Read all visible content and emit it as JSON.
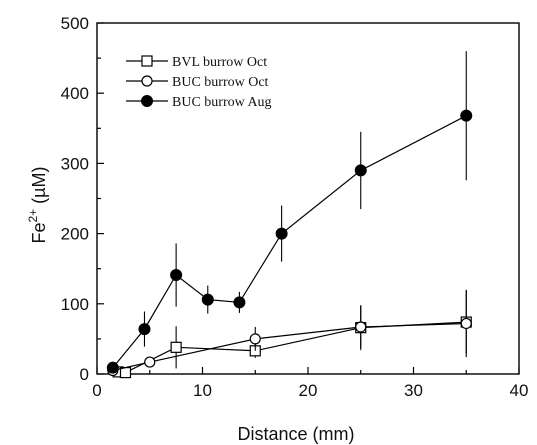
{
  "chart_data": {
    "type": "scatter",
    "xlabel": "Distance (mm)",
    "ylabel": {
      "base": "Fe",
      "sup": "2+",
      "rest": " (µM)"
    },
    "xlim": [
      0,
      40
    ],
    "ylim": [
      0,
      500
    ],
    "xticks": [
      0,
      10,
      20,
      30,
      40
    ],
    "yticks": [
      0,
      100,
      200,
      300,
      400,
      500
    ],
    "legend_position": "top-left",
    "series": [
      {
        "name": "BVL burrow Oct",
        "marker": "open-square",
        "points": [
          {
            "x": 2,
            "y": 3,
            "err": 3
          },
          {
            "x": 2.7,
            "y": 2,
            "err": 3
          },
          {
            "x": 7.5,
            "y": 38,
            "err": 30
          },
          {
            "x": 15,
            "y": 33,
            "err": 10
          },
          {
            "x": 25,
            "y": 66,
            "err": 32
          },
          {
            "x": 35,
            "y": 74,
            "err": 45
          }
        ]
      },
      {
        "name": "BUC burrow Oct",
        "marker": "open-circle",
        "points": [
          {
            "x": 1.5,
            "y": 5,
            "err": 3
          },
          {
            "x": 5,
            "y": 17,
            "err": 7
          },
          {
            "x": 15,
            "y": 50,
            "err": 17
          },
          {
            "x": 25,
            "y": 67,
            "err": 30
          },
          {
            "x": 35,
            "y": 72,
            "err": 48
          }
        ]
      },
      {
        "name": "BUC burrow Aug",
        "marker": "filled-circle",
        "points": [
          {
            "x": 1.5,
            "y": 9,
            "err": 4
          },
          {
            "x": 4.5,
            "y": 64,
            "err": 25
          },
          {
            "x": 7.5,
            "y": 141,
            "err": 45
          },
          {
            "x": 10.5,
            "y": 106,
            "err": 20
          },
          {
            "x": 13.5,
            "y": 102,
            "err": 15
          },
          {
            "x": 17.5,
            "y": 200,
            "err": 40
          },
          {
            "x": 25,
            "y": 290,
            "err": 55
          },
          {
            "x": 35,
            "y": 368,
            "err": 92
          }
        ]
      }
    ]
  }
}
